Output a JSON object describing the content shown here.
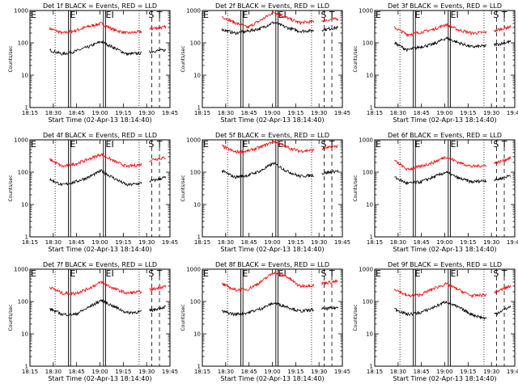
{
  "chart_data": {
    "type": "line",
    "x_tick_labels": [
      "18:15",
      "18:30",
      "18:45",
      "19:00",
      "19:15",
      "19:30",
      "19:45"
    ],
    "y_tick_labels": [
      "1",
      "10",
      "100",
      "1000"
    ],
    "ylim": [
      1,
      1000
    ],
    "yscale": "log",
    "ylabel": "Counts/sec",
    "xlabel": "Start Time (02-Apr-13 18:14:40)",
    "colors": {
      "events": "#000000",
      "lld": "#ff0000"
    },
    "panels": [
      {
        "title": "Det 1f BLACK = Events, RED = LLD",
        "marks": [
          "E",
          "E",
          "EI",
          "S",
          "T"
        ],
        "events_level": [
          60,
          45,
          55,
          75,
          110,
          70,
          45,
          48,
          55,
          60
        ],
        "lld_level": [
          280,
          200,
          240,
          320,
          400,
          250,
          200,
          220,
          280,
          310
        ]
      },
      {
        "title": "Det 2f BLACK = Events, RED = LLD",
        "marks": [
          "E",
          "E",
          "EI",
          "S",
          "T"
        ],
        "events_level": [
          260,
          200,
          230,
          280,
          430,
          300,
          230,
          240,
          260,
          300
        ],
        "lld_level": [
          650,
          420,
          300,
          500,
          900,
          600,
          420,
          450,
          500,
          560
        ]
      },
      {
        "title": "Det 3f BLACK = Events, RED = LLD",
        "marks": [
          "E",
          "E",
          "EI",
          "S",
          "T"
        ],
        "events_level": [
          100,
          60,
          75,
          90,
          140,
          100,
          75,
          80,
          90,
          110
        ],
        "lld_level": [
          300,
          180,
          210,
          260,
          370,
          250,
          200,
          210,
          250,
          320
        ]
      },
      {
        "title": "Det 4f BLACK = Events, RED = LLD",
        "marks": [
          "E",
          "E",
          "EI",
          "S",
          "T"
        ],
        "events_level": [
          60,
          40,
          50,
          70,
          110,
          65,
          40,
          45,
          55,
          70
        ],
        "lld_level": [
          250,
          150,
          180,
          250,
          360,
          220,
          150,
          170,
          250,
          280
        ]
      },
      {
        "title": "Det 5f BLACK = Events, RED = LLD",
        "marks": [
          "E",
          "E",
          "EI",
          "S",
          "T"
        ],
        "events_level": [
          110,
          70,
          80,
          110,
          190,
          110,
          75,
          80,
          95,
          110
        ],
        "lld_level": [
          650,
          420,
          450,
          600,
          900,
          600,
          450,
          480,
          550,
          650
        ]
      },
      {
        "title": "Det 6f BLACK = Events, RED = LLD",
        "marks": [
          "E",
          "E",
          "EI",
          "S",
          "T"
        ],
        "events_level": [
          70,
          45,
          50,
          70,
          100,
          65,
          50,
          55,
          60,
          80
        ],
        "lld_level": [
          230,
          120,
          150,
          200,
          300,
          200,
          150,
          160,
          200,
          280
        ]
      },
      {
        "title": "Det 7f BLACK = Events, RED = LLD",
        "marks": [
          "E",
          "E",
          "EI",
          "S",
          "T"
        ],
        "events_level": [
          60,
          40,
          40,
          65,
          110,
          70,
          45,
          48,
          55,
          70
        ],
        "lld_level": [
          280,
          180,
          180,
          250,
          400,
          250,
          180,
          200,
          240,
          300
        ]
      },
      {
        "title": "Det 8f BLACK = Events, RED = LLD",
        "marks": [
          "E",
          "E",
          "EI",
          "S",
          "T"
        ],
        "events_level": [
          50,
          40,
          45,
          60,
          90,
          70,
          50,
          55,
          60,
          65
        ],
        "lld_level": [
          350,
          230,
          240,
          400,
          800,
          600,
          300,
          320,
          380,
          420
        ]
      },
      {
        "title": "Det 9f BLACK = Events, RED = LLD",
        "marks": [
          "E",
          "E",
          "EI",
          "S",
          "T"
        ],
        "events_level": [
          60,
          40,
          45,
          65,
          100,
          65,
          40,
          30,
          45,
          70
        ],
        "lld_level": [
          250,
          150,
          160,
          250,
          350,
          230,
          150,
          160,
          210,
          300
        ]
      }
    ]
  }
}
